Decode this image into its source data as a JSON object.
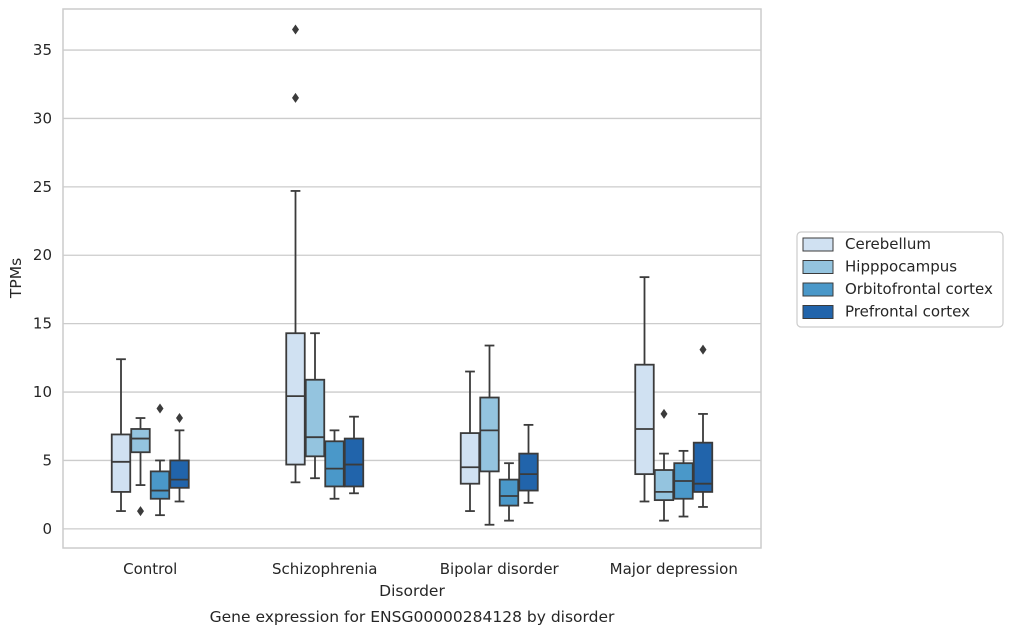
{
  "chart_data": {
    "type": "boxplot",
    "title": "",
    "caption": "Gene expression for ENSG00000284128 by disorder",
    "xlabel": "Disorder",
    "ylabel": "TPMs",
    "ylim": [
      -1.4,
      38
    ],
    "yticks": [
      0,
      5,
      10,
      15,
      20,
      25,
      30,
      35
    ],
    "grid": "horizontal",
    "legend_position": "center-right",
    "categories": [
      "Control",
      "Schizophrenia",
      "Bipolar disorder",
      "Major depression"
    ],
    "series": [
      {
        "name": "Cerebellum",
        "color": "#d0e1f2",
        "boxes": [
          {
            "whisker_low": 1.3,
            "q1": 2.7,
            "median": 4.9,
            "q3": 6.9,
            "whisker_high": 12.4,
            "outliers": []
          },
          {
            "whisker_low": 3.4,
            "q1": 4.7,
            "median": 9.7,
            "q3": 14.3,
            "whisker_high": 24.7,
            "outliers": [
              31.5,
              36.5
            ]
          },
          {
            "whisker_low": 1.3,
            "q1": 3.3,
            "median": 4.5,
            "q3": 7.0,
            "whisker_high": 11.5,
            "outliers": []
          },
          {
            "whisker_low": 2.0,
            "q1": 4.0,
            "median": 7.3,
            "q3": 12.0,
            "whisker_high": 18.4,
            "outliers": []
          }
        ]
      },
      {
        "name": "Hipppocampus",
        "color": "#94c4df",
        "boxes": [
          {
            "whisker_low": 3.2,
            "q1": 5.6,
            "median": 6.6,
            "q3": 7.3,
            "whisker_high": 8.1,
            "outliers": [
              1.3
            ]
          },
          {
            "whisker_low": 3.7,
            "q1": 5.3,
            "median": 6.7,
            "q3": 10.9,
            "whisker_high": 14.3,
            "outliers": []
          },
          {
            "whisker_low": 0.3,
            "q1": 4.2,
            "median": 7.2,
            "q3": 9.6,
            "whisker_high": 13.4,
            "outliers": []
          },
          {
            "whisker_low": 0.6,
            "q1": 2.1,
            "median": 2.7,
            "q3": 4.3,
            "whisker_high": 5.5,
            "outliers": [
              8.4
            ]
          }
        ]
      },
      {
        "name": "Orbitofrontal cortex",
        "color": "#4a98c9",
        "boxes": [
          {
            "whisker_low": 1.0,
            "q1": 2.2,
            "median": 2.8,
            "q3": 4.2,
            "whisker_high": 5.0,
            "outliers": [
              8.8
            ]
          },
          {
            "whisker_low": 2.2,
            "q1": 3.1,
            "median": 4.4,
            "q3": 6.4,
            "whisker_high": 7.2,
            "outliers": []
          },
          {
            "whisker_low": 0.6,
            "q1": 1.7,
            "median": 2.4,
            "q3": 3.6,
            "whisker_high": 4.8,
            "outliers": []
          },
          {
            "whisker_low": 0.9,
            "q1": 2.2,
            "median": 3.5,
            "q3": 4.8,
            "whisker_high": 5.7,
            "outliers": []
          }
        ]
      },
      {
        "name": "Prefrontal cortex",
        "color": "#2164ab",
        "boxes": [
          {
            "whisker_low": 2.0,
            "q1": 3.0,
            "median": 3.6,
            "q3": 5.0,
            "whisker_high": 7.2,
            "outliers": [
              8.1
            ]
          },
          {
            "whisker_low": 2.6,
            "q1": 3.1,
            "median": 4.7,
            "q3": 6.6,
            "whisker_high": 8.2,
            "outliers": []
          },
          {
            "whisker_low": 1.9,
            "q1": 2.8,
            "median": 4.0,
            "q3": 5.5,
            "whisker_high": 7.6,
            "outliers": []
          },
          {
            "whisker_low": 1.6,
            "q1": 2.7,
            "median": 3.3,
            "q3": 6.3,
            "whisker_high": 8.4,
            "outliers": [
              13.1
            ]
          }
        ]
      }
    ]
  }
}
